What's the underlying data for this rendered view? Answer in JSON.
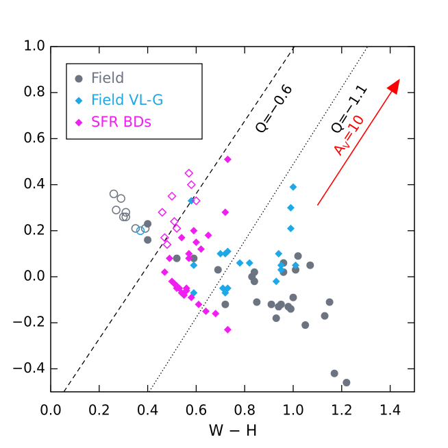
{
  "chart_data": {
    "type": "scatter",
    "x_label": "W − H",
    "xlim": [
      0.0,
      1.5
    ],
    "ylim": [
      -0.5,
      1.0
    ],
    "xticks": [
      {
        "value": 0.0,
        "label": "0.0"
      },
      0.2,
      0.4,
      0.6,
      0.8,
      {
        "value": 1.0,
        "label": "1.0"
      },
      1.2,
      1.4
    ],
    "yticks": [
      {
        "value": -0.4,
        "label": "−0.4"
      },
      {
        "value": -0.2,
        "label": "−0.2"
      },
      {
        "value": 0.0,
        "label": "0.0"
      },
      0.2,
      0.4,
      0.6,
      0.8,
      {
        "value": 1.0,
        "label": "1.0"
      }
    ],
    "legend_position": "upper left",
    "series": [
      {
        "name": "Field",
        "color": "#6b7480",
        "marker": "circle",
        "filled": true,
        "x": [
          0.4,
          0.4,
          0.52,
          0.59,
          0.69,
          0.72,
          0.83,
          0.84,
          0.84,
          0.85,
          0.91,
          0.93,
          0.94,
          0.95,
          0.96,
          0.96,
          0.98,
          0.99,
          1.0,
          1.01,
          1.02,
          1.05,
          1.07,
          1.13,
          1.15,
          1.17,
          1.22
        ],
        "values": [
          0.23,
          0.16,
          0.08,
          0.08,
          0.03,
          -0.12,
          0.0,
          0.02,
          -0.02,
          -0.11,
          -0.12,
          -0.18,
          -0.13,
          -0.12,
          0.02,
          0.06,
          -0.13,
          -0.14,
          -0.09,
          0.03,
          0.09,
          -0.21,
          0.05,
          -0.17,
          -0.11,
          -0.42,
          -0.46
        ]
      },
      {
        "name": "Field VL-G",
        "color": "#1ea8e8",
        "marker": "diamond",
        "filled": true,
        "x": [
          0.58,
          0.59,
          0.59,
          0.7,
          0.71,
          0.72,
          0.72,
          0.73,
          0.73,
          0.78,
          0.82,
          0.93,
          0.94,
          0.95,
          0.95,
          0.99,
          0.99,
          1.0,
          1.01
        ],
        "values": [
          0.33,
          0.05,
          -0.07,
          0.1,
          -0.05,
          0.1,
          -0.07,
          0.11,
          -0.05,
          0.06,
          0.06,
          -0.02,
          0.1,
          0.05,
          0.03,
          0.21,
          0.3,
          0.39,
          0.05
        ]
      },
      {
        "name": "SFR BDs",
        "color": "#f01ef0",
        "marker": "diamond",
        "filled": true,
        "x": [
          0.73,
          0.72,
          0.73,
          0.47,
          0.49,
          0.5,
          0.51,
          0.52,
          0.53,
          0.54,
          0.54,
          0.55,
          0.56,
          0.57,
          0.57,
          0.56,
          0.58,
          0.59,
          0.6,
          0.61,
          0.62,
          0.64,
          0.65,
          0.68,
          0.52
        ],
        "values": [
          0.51,
          0.28,
          -0.23,
          0.02,
          0.08,
          -0.02,
          -0.03,
          -0.04,
          -0.05,
          0.17,
          -0.07,
          -0.08,
          -0.05,
          0.1,
          0.08,
          -0.06,
          -0.09,
          0.2,
          0.15,
          -0.12,
          0.12,
          -0.15,
          0.18,
          -0.16,
          -0.05
        ]
      },
      {
        "color": "#6b7480",
        "marker": "circle",
        "filled": false,
        "x": [
          0.26,
          0.27,
          0.29,
          0.3,
          0.31,
          0.31,
          0.35,
          0.39
        ],
        "values": [
          0.36,
          0.29,
          0.34,
          0.26,
          0.28,
          0.26,
          0.21,
          0.21
        ]
      },
      {
        "color": "#1ea8e8",
        "marker": "circle",
        "filled": false,
        "x": [
          0.37
        ],
        "values": [
          0.2
        ]
      },
      {
        "color": "#f01ef0",
        "marker": "diamond",
        "filled": false,
        "x": [
          0.46,
          0.47,
          0.48,
          0.5,
          0.51,
          0.52,
          0.57,
          0.58,
          0.6
        ],
        "values": [
          0.28,
          0.17,
          0.14,
          0.35,
          0.24,
          0.21,
          0.45,
          0.4,
          0.33
        ]
      }
    ],
    "lines": [
      {
        "label": "Q=−0.6",
        "style": "dashed",
        "x": [
          0.054,
          1.005
        ],
        "y": [
          -0.5,
          1.0
        ]
      },
      {
        "label": "Q=−1.1",
        "style": "dotted",
        "x": [
          0.406,
          1.307
        ],
        "y": [
          -0.5,
          1.0
        ]
      }
    ],
    "arrow": {
      "color": "#ff0000",
      "x": [
        1.1,
        1.44
      ],
      "y": [
        0.31,
        0.86
      ],
      "label": {
        "main": "A",
        "sub": "V",
        "rest": "=10"
      }
    }
  }
}
